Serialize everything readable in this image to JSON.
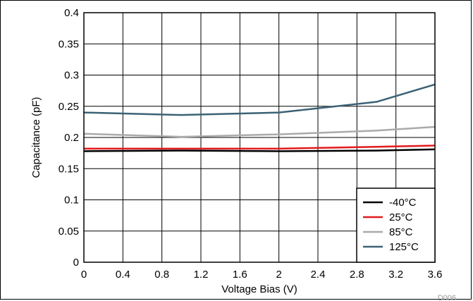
{
  "chart_data": {
    "type": "line",
    "title": "",
    "xlabel": "Voltage Bias (V)",
    "ylabel": "Capacitance (pF)",
    "xlim": [
      0,
      3.6
    ],
    "ylim": [
      0,
      0.4
    ],
    "xticks": [
      0,
      0.4,
      0.8,
      1.2,
      1.6,
      2,
      2.4,
      2.8,
      3.2,
      3.6
    ],
    "xtick_labels": [
      "0",
      "0.4",
      "0.8",
      "1.2",
      "1.6",
      "2",
      "2.4",
      "2.8",
      "3.2",
      "3.6"
    ],
    "yticks": [
      0,
      0.05,
      0.1,
      0.15,
      0.2,
      0.25,
      0.3,
      0.35,
      0.4
    ],
    "ytick_labels": [
      "0",
      "0.05",
      "0.1",
      "0.15",
      "0.2",
      "0.25",
      "0.3",
      "0.35",
      "0.4"
    ],
    "grid": true,
    "legend_position": "bottom-right",
    "figure_code": "D006",
    "series": [
      {
        "name": "-40°C",
        "color": "#000000",
        "x": [
          0,
          1,
          2,
          3,
          3.6
        ],
        "y": [
          0.178,
          0.179,
          0.178,
          0.179,
          0.181
        ]
      },
      {
        "name": "25°C",
        "color": "#e31a1c",
        "x": [
          0,
          1,
          2,
          3,
          3.6
        ],
        "y": [
          0.182,
          0.182,
          0.182,
          0.185,
          0.187
        ]
      },
      {
        "name": "85°C",
        "color": "#aaaaaa",
        "x": [
          0,
          1,
          2,
          3,
          3.6
        ],
        "y": [
          0.206,
          0.201,
          0.205,
          0.211,
          0.217
        ]
      },
      {
        "name": "125°C",
        "color": "#3b6275",
        "x": [
          0,
          1,
          2,
          3,
          3.6
        ],
        "y": [
          0.24,
          0.236,
          0.24,
          0.257,
          0.285
        ]
      }
    ]
  }
}
